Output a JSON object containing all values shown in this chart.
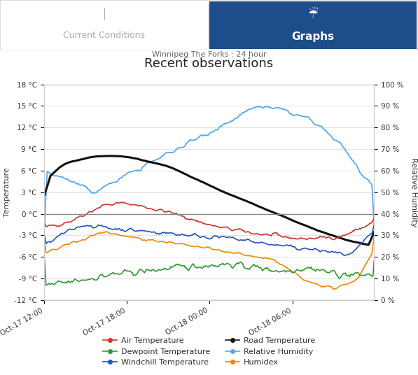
{
  "title": "Recent observations",
  "subtitle": "Winnipeg The Forks : 24 hour",
  "ylabel_left": "Temperature",
  "ylabel_right": "Relative Humidity",
  "yticks_left": [
    -12,
    -9,
    -6,
    -3,
    0,
    3,
    6,
    9,
    12,
    15,
    18
  ],
  "ytick_labels_left": [
    "-12 °C",
    "-9 °C",
    "-6 °C",
    "-3 °C",
    "0 °C",
    "3 °C",
    "6 °C",
    "9 °C",
    "12 °C",
    "15 °C",
    "18 °C"
  ],
  "ylim_left": [
    -12,
    18
  ],
  "ylim_right": [
    0,
    100
  ],
  "yticks_right": [
    0,
    10,
    20,
    30,
    40,
    50,
    60,
    70,
    80,
    90,
    100
  ],
  "ytick_labels_right": [
    "0 %",
    "10 %",
    "20 %",
    "30 %",
    "40 %",
    "50 %",
    "60 %",
    "70 %",
    "80 %",
    "90 %",
    "100 %"
  ],
  "xtick_labels": [
    "Oct-17 12:00",
    "Oct-17 18:00",
    "Oct-18 00:00",
    "Oct-18 06:00"
  ],
  "colors": {
    "air_temp": "#cc3333",
    "dewpoint": "#339933",
    "windchill": "#2255bb",
    "road_temp": "#111111",
    "rel_humidity": "#55aaee",
    "humidex": "#ee8800"
  },
  "zero_line_color": "#888888",
  "grid_color": "#dddddd",
  "tab_active_color": "#1e4d8c",
  "tab_inactive_text": "#999999",
  "outer_bg": "#ffffff",
  "border_color": "#cccccc"
}
